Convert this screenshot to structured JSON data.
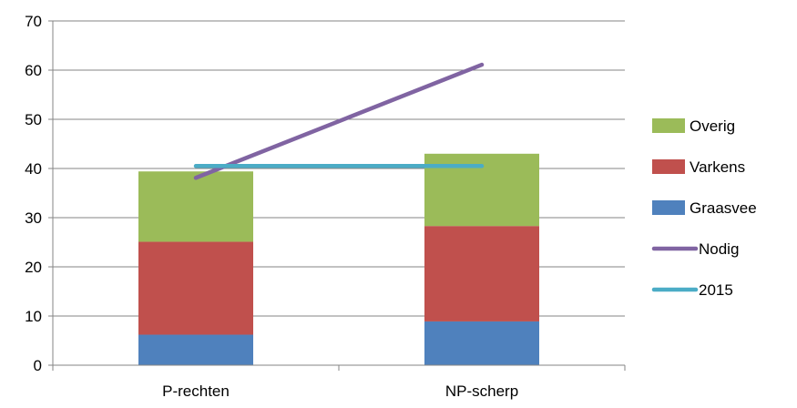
{
  "chart_data": {
    "type": "bar",
    "stacked": true,
    "categories": [
      "P-rechten",
      "NP-scherp"
    ],
    "series": [
      {
        "name": "Graasvee",
        "kind": "bar",
        "color": "#4f81bd",
        "values": [
          6.2,
          8.9
        ]
      },
      {
        "name": "Varkens",
        "kind": "bar",
        "color": "#c0504d",
        "values": [
          18.9,
          19.4
        ]
      },
      {
        "name": "Overig",
        "kind": "bar",
        "color": "#9bbb59",
        "values": [
          14.3,
          14.7
        ]
      },
      {
        "name": "Nodig",
        "kind": "line",
        "color": "#8064a2",
        "values": [
          38.1,
          61.1
        ]
      },
      {
        "name": "2015",
        "kind": "line",
        "color": "#4bacc6",
        "values": [
          40.5,
          40.5
        ]
      }
    ],
    "legend_order": [
      "Overig",
      "Varkens",
      "Graasvee",
      "Nodig",
      "2015"
    ],
    "legend_position": "right",
    "ylim": [
      0,
      70
    ],
    "yticks": [
      0,
      10,
      20,
      30,
      40,
      50,
      60,
      70
    ],
    "grid": "horizontal"
  }
}
